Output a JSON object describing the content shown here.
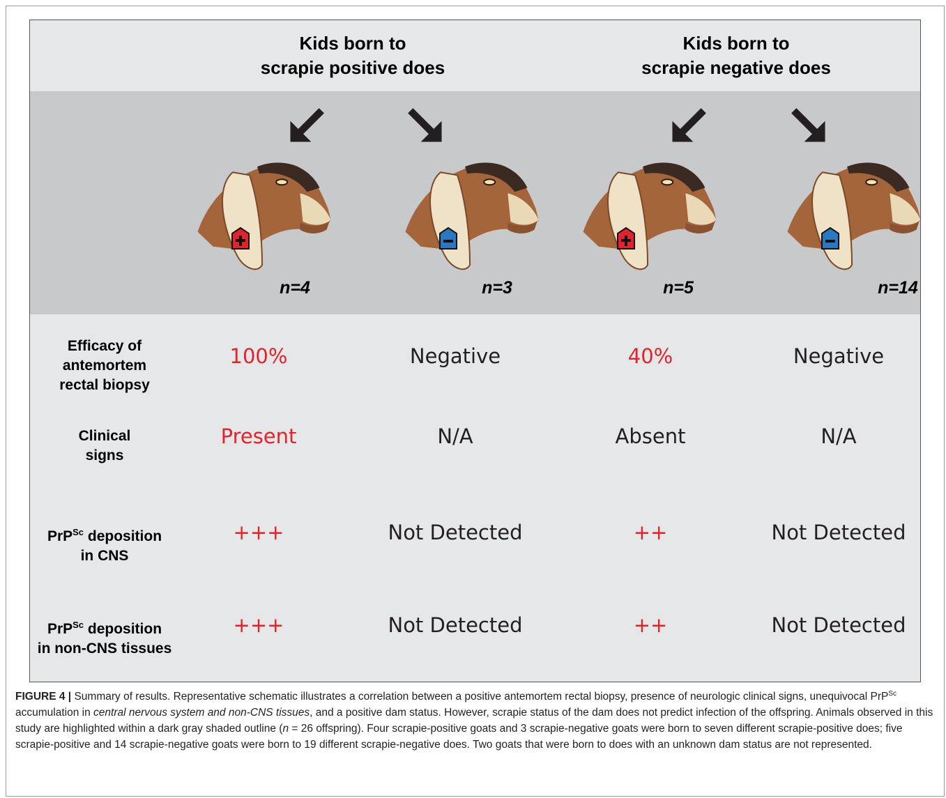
{
  "groups": [
    "Kids born to\nscrapie positive does",
    "Kids born to\nscrapie negative does"
  ],
  "columns": [
    "n=4",
    "n=3",
    "n=5",
    "n=14"
  ],
  "rows": [
    {
      "label": [
        [
          "Efficacy of"
        ],
        [
          "antemortem"
        ],
        [
          "rectal biopsy"
        ]
      ],
      "cells": [
        {
          "text": "100%",
          "color": "#e3232b"
        },
        {
          "text": "Negative",
          "color": "#231f20"
        },
        {
          "text": "40%",
          "color": "#e3232b"
        },
        {
          "text": "Negative",
          "color": "#231f20"
        }
      ]
    },
    {
      "label": [
        [
          "Clinical"
        ],
        [
          "signs"
        ]
      ],
      "cells": [
        {
          "text": "Present",
          "color": "#e3232b"
        },
        {
          "text": "N/A",
          "color": "#231f20"
        },
        {
          "text": "Absent",
          "color": "#231f20"
        },
        {
          "text": "N/A",
          "color": "#231f20"
        }
      ]
    },
    {
      "label": [
        [
          "PrP",
          {
            "sup": "Sc"
          },
          " deposition"
        ],
        [
          "in CNS"
        ]
      ],
      "cells": [
        {
          "text": "+++",
          "color": "#e3232b"
        },
        {
          "text": "Not Detected",
          "color": "#231f20"
        },
        {
          "text": "++",
          "color": "#e3232b"
        },
        {
          "text": "Not Detected",
          "color": "#231f20"
        }
      ]
    },
    {
      "label": [
        [
          "PrP",
          {
            "sup": "Sc"
          },
          " deposition"
        ],
        [
          "in non-CNS tissues"
        ]
      ],
      "cells": [
        {
          "text": "+++",
          "color": "#e3232b"
        },
        {
          "text": "Not Detected",
          "color": "#231f20"
        },
        {
          "text": "++",
          "color": "#e3232b"
        },
        {
          "text": "Not Detected",
          "color": "#231f20"
        }
      ]
    }
  ],
  "caption": [
    {
      "text": "FIGURE 4 |",
      "style": "bold"
    },
    {
      "text": " Summary of results. Representative schematic illustrates a correlation between a positive antemortem rectal biopsy, presence of neurologic clinical signs, unequivocal PrP"
    },
    {
      "text": "Sc",
      "style": "sup"
    },
    {
      "text": " accumulation in "
    },
    {
      "text": "central nervous system and non-CNS tissues",
      "style": "italic"
    },
    {
      "text": ", and a positive dam status. However, scrapie status of the dam does not predict infection of the offspring. Animals observed in this study are highlighted within a dark gray shaded outline ("
    },
    {
      "text": "n",
      "style": "italic"
    },
    {
      "text": " = 26 offspring). Four scrapie-positive goats and 3 scrapie-negative goats were born to seven different scrapie-positive does; five scrapie-positive and 14 scrapie-negative goats were born to 19 different scrapie-negative does. Two goats that were born to does with an unknown dam status are not represented."
    }
  ]
}
